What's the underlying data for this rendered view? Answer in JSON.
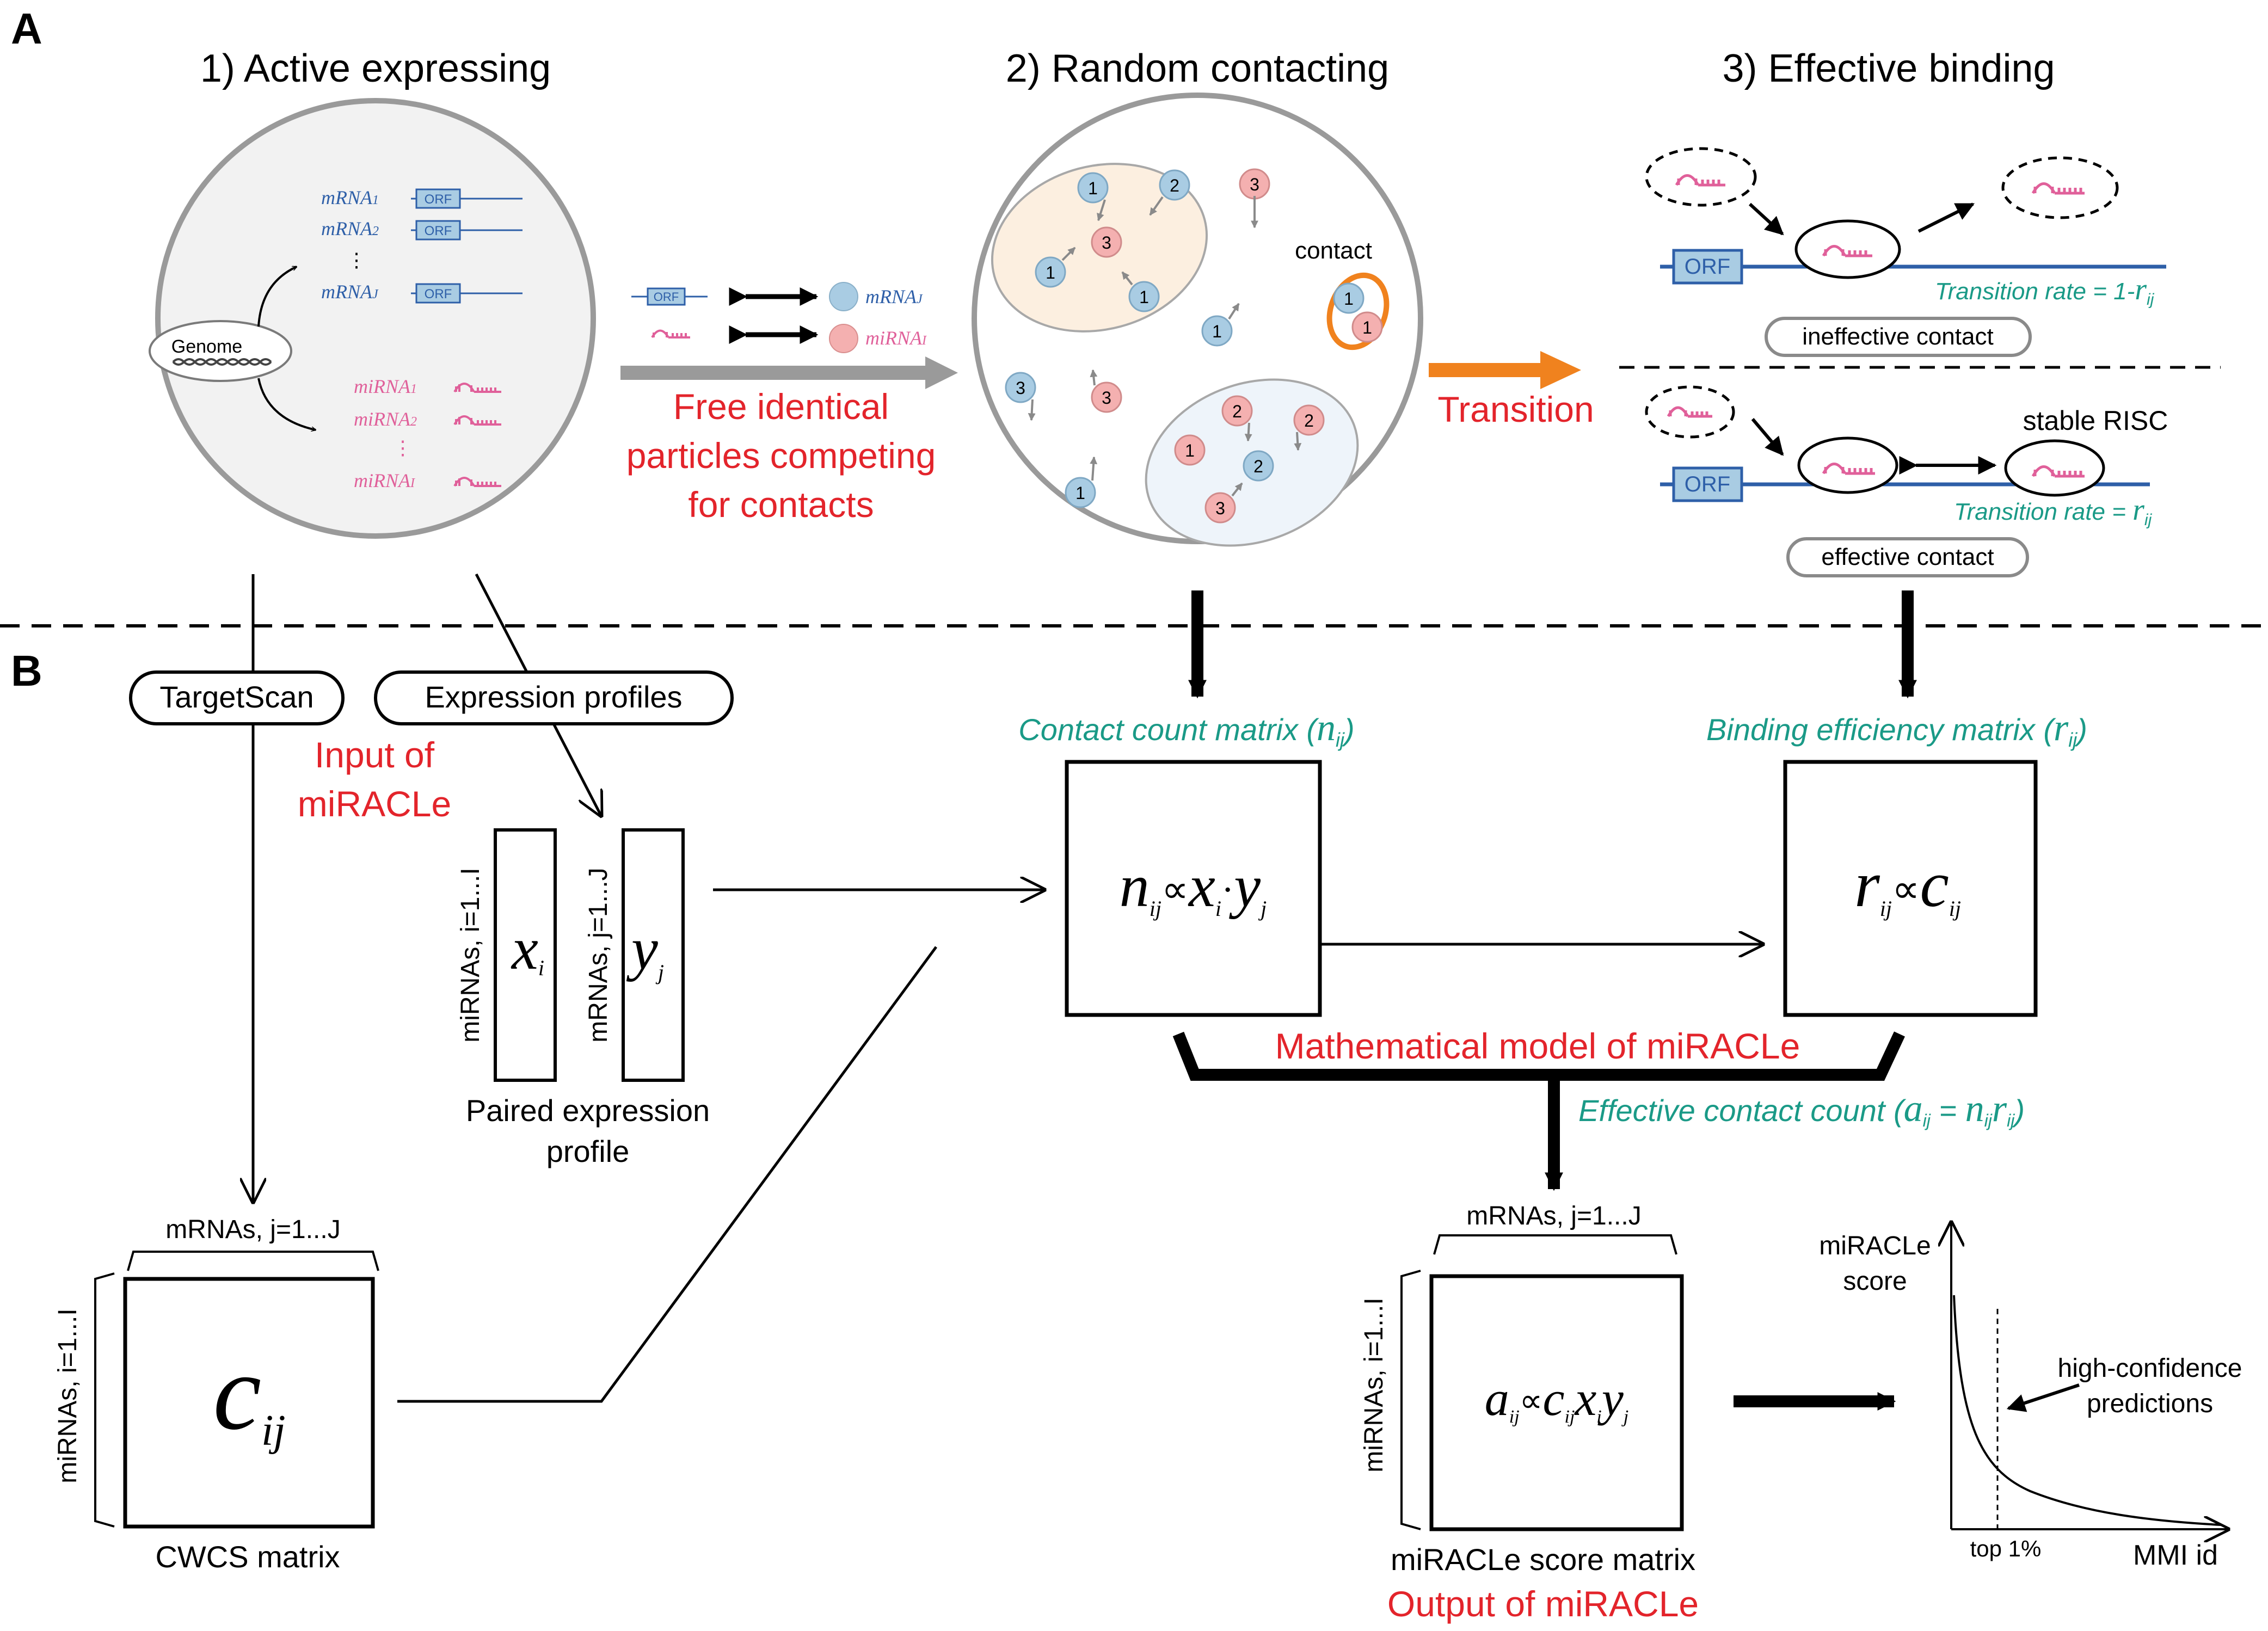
{
  "panels": {
    "a_letter": "A",
    "b_letter": "B"
  },
  "stages": {
    "s1": "1) Active expressing",
    "s2": "2) Random contacting",
    "s3": "3) Effective binding"
  },
  "cell": {
    "genome": "Genome",
    "mrna_labels": [
      "mRNA",
      "mRNA",
      "mRNA"
    ],
    "mrna_subs": [
      "1",
      "2",
      "J"
    ],
    "mirna_labels": [
      "miRNA",
      "miRNA",
      "miRNA"
    ],
    "mirna_subs": [
      "1",
      "2",
      "I"
    ],
    "orf": "ORF",
    "vdots": "⋮"
  },
  "legend": {
    "mrna": "mRNA",
    "mrna_sub": "J",
    "mirna": "miRNA",
    "mirna_sub": "I",
    "orf": "ORF"
  },
  "free_particles": [
    "Free identical",
    "particles competing",
    "for contacts"
  ],
  "contact_label": "contact",
  "transition": "Transition",
  "particles": {
    "blue_numbers": [
      "1",
      "2",
      "1",
      "1",
      "1",
      "1",
      "3",
      "2",
      "1",
      "1"
    ],
    "pink_numbers": [
      "3",
      "3",
      "1",
      "3",
      "2",
      "2",
      "1",
      "3"
    ]
  },
  "binding": {
    "orf": "ORF",
    "rate_top": "Transition rate = 1-",
    "rate_bottom": "Transition rate = ",
    "r": "r",
    "ij": "ij",
    "ineffective": "ineffective contact",
    "effective": "effective contact",
    "stable_risc": "stable RISC"
  },
  "inputs": {
    "targetscan": "TargetScan",
    "expression_profiles": "Expression profiles",
    "input_of": "Input of",
    "miracle": "miRACLe"
  },
  "profiles": {
    "mirna_axis": "miRNAs, i=1...I",
    "mrna_axis": "mRNAs, j=1...J",
    "x": "x",
    "x_sub": "i",
    "y": "y",
    "y_sub": "j",
    "caption_1": "Paired expression",
    "caption_2": "profile"
  },
  "matrices": {
    "contact_title": "Contact count matrix (",
    "contact_n": "n",
    "contact_ij": "ij",
    "close_paren": ")",
    "binding_title": "Binding efficiency matrix (",
    "binding_r": "r",
    "binding_ij": "ij",
    "n_formula": {
      "n": "n",
      "ij": "ij",
      "prop": "∝",
      "x": "x",
      "i": "i",
      "dot": "·",
      "y": "y",
      "j": "j"
    },
    "r_formula": {
      "r": "r",
      "ij": "ij",
      "prop": "∝",
      "c": "c",
      "cij": "ij"
    },
    "model": "Mathematical model of miRACLe",
    "effective_count": "Effective contact count (",
    "eff_a": "a",
    "eff_eq": " = ",
    "eff_n": "n",
    "eff_r": "r",
    "eff_ij": "ij"
  },
  "cwcs": {
    "mrna_axis": "mRNAs, j=1...J",
    "mirna_axis": "miRNAs, i=1...I",
    "c": "c",
    "ij": "ij",
    "caption": "CWCS matrix"
  },
  "score": {
    "mrna_axis": "mRNAs, j=1...J",
    "mirna_axis": "miRNAs, i=1...I",
    "a": "a",
    "ij": "ij",
    "prop": "∝",
    "c": "c",
    "x": "x",
    "i": "i",
    "y": "y",
    "j": "j",
    "caption": "miRACLe score matrix",
    "output": "Output of miRACLe"
  },
  "plot": {
    "ylabel_1": "miRACLe",
    "ylabel_2": "score",
    "xlabel": "MMI id",
    "cutoff": "top 1%",
    "annot_1": "high-confidence",
    "annot_2": "predictions"
  },
  "colors": {
    "blue": "#2e5fa8",
    "pink": "#e0609a",
    "teal": "#1a9a87",
    "red": "#e3242b",
    "orange": "#f0821e",
    "blue_particle": "#a9cce3",
    "pink_particle": "#f4b0b0",
    "cell_fill": "#f2f2f2",
    "cell_edge": "#9a9a9a"
  }
}
